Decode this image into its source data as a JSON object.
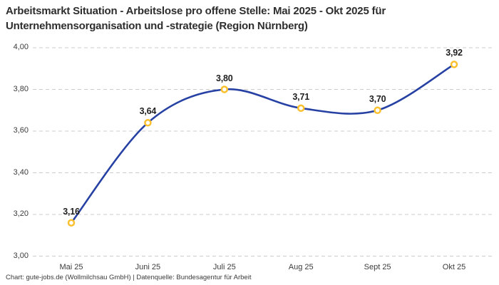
{
  "title": "Arbeitsmarkt Situation - Arbeitslose pro offene Stelle: Mai 2025 - Okt 2025 für Unternehmensorganisation und -strategie (Region Nürnberg)",
  "footer": "Chart: gute-jobs.de (Wollmilchsau GmbH) | Datenquelle: Bundesagentur für Arbeit",
  "chart_data": {
    "type": "line",
    "title": "Arbeitsmarkt Situation - Arbeitslose pro offene Stelle: Mai 2025 - Okt 2025 für Unternehmensorganisation und -strategie (Region Nürnberg)",
    "categories": [
      "Mai 25",
      "Juni 25",
      "Juli 25",
      "Aug 25",
      "Sept 25",
      "Okt 25"
    ],
    "values": [
      3.16,
      3.64,
      3.8,
      3.71,
      3.7,
      3.92
    ],
    "value_labels": [
      "3,16",
      "3,64",
      "3,80",
      "3,71",
      "3,70",
      "3,92"
    ],
    "xlabel": "",
    "ylabel": "",
    "ylim": [
      3.0,
      4.0
    ],
    "y_ticks": [
      {
        "value": 4.0,
        "label": "4,00"
      },
      {
        "value": 3.8,
        "label": "3,80"
      },
      {
        "value": 3.6,
        "label": "3,60"
      },
      {
        "value": 3.4,
        "label": "3,40"
      },
      {
        "value": 3.2,
        "label": "3,20"
      },
      {
        "value": 3.0,
        "label": "3,00"
      }
    ],
    "grid": "horizontal-dashed",
    "legend": "none",
    "line_style": "smooth",
    "colors": {
      "line": "#2641A3",
      "marker_ring": "#FBC02D",
      "marker_fill": "#FFFFFF",
      "grid": "#CCCCCC",
      "title_text": "#2E2E2E",
      "axis_text": "#3C3C3C",
      "point_label_text": "#1F1F1F",
      "background": "#FFFFFF"
    }
  }
}
